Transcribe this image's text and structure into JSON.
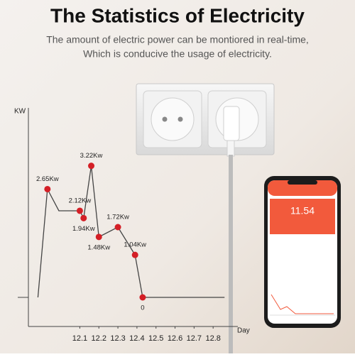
{
  "chart_data": {
    "type": "line",
    "title": "The Statistics of Electricity",
    "subtitle": [
      "The amount of electric power can be montiored in real-time,",
      "Which is conducive the usage of electricity."
    ],
    "y_label": "KW",
    "x_label": "Day",
    "xlim": [
      11.83,
      12.9
    ],
    "xticks": [
      12.1,
      12.2,
      12.3,
      12.4,
      12.5,
      12.6,
      12.7,
      12.8
    ],
    "ylim": [
      0,
      4.5
    ],
    "grid": false,
    "series": [
      {
        "color": "#444444",
        "marker_color": "#d41f26",
        "x": [
          11.88,
          11.93,
          11.99,
          12.1,
          12.12,
          12.16,
          12.2,
          12.3,
          12.39,
          12.43,
          12.86
        ],
        "values": [
          0,
          2.65,
          2.12,
          2.12,
          1.94,
          3.22,
          1.48,
          1.72,
          1.04,
          0,
          0
        ],
        "value_labels": [
          null,
          "2.65Kw",
          null,
          "2.12Kw",
          "1.94Kw",
          "3.22Kw",
          "1.48Kw",
          "1.72Kw",
          "1.04Kw",
          "0",
          null
        ]
      }
    ],
    "phone_reading": "11.54"
  }
}
